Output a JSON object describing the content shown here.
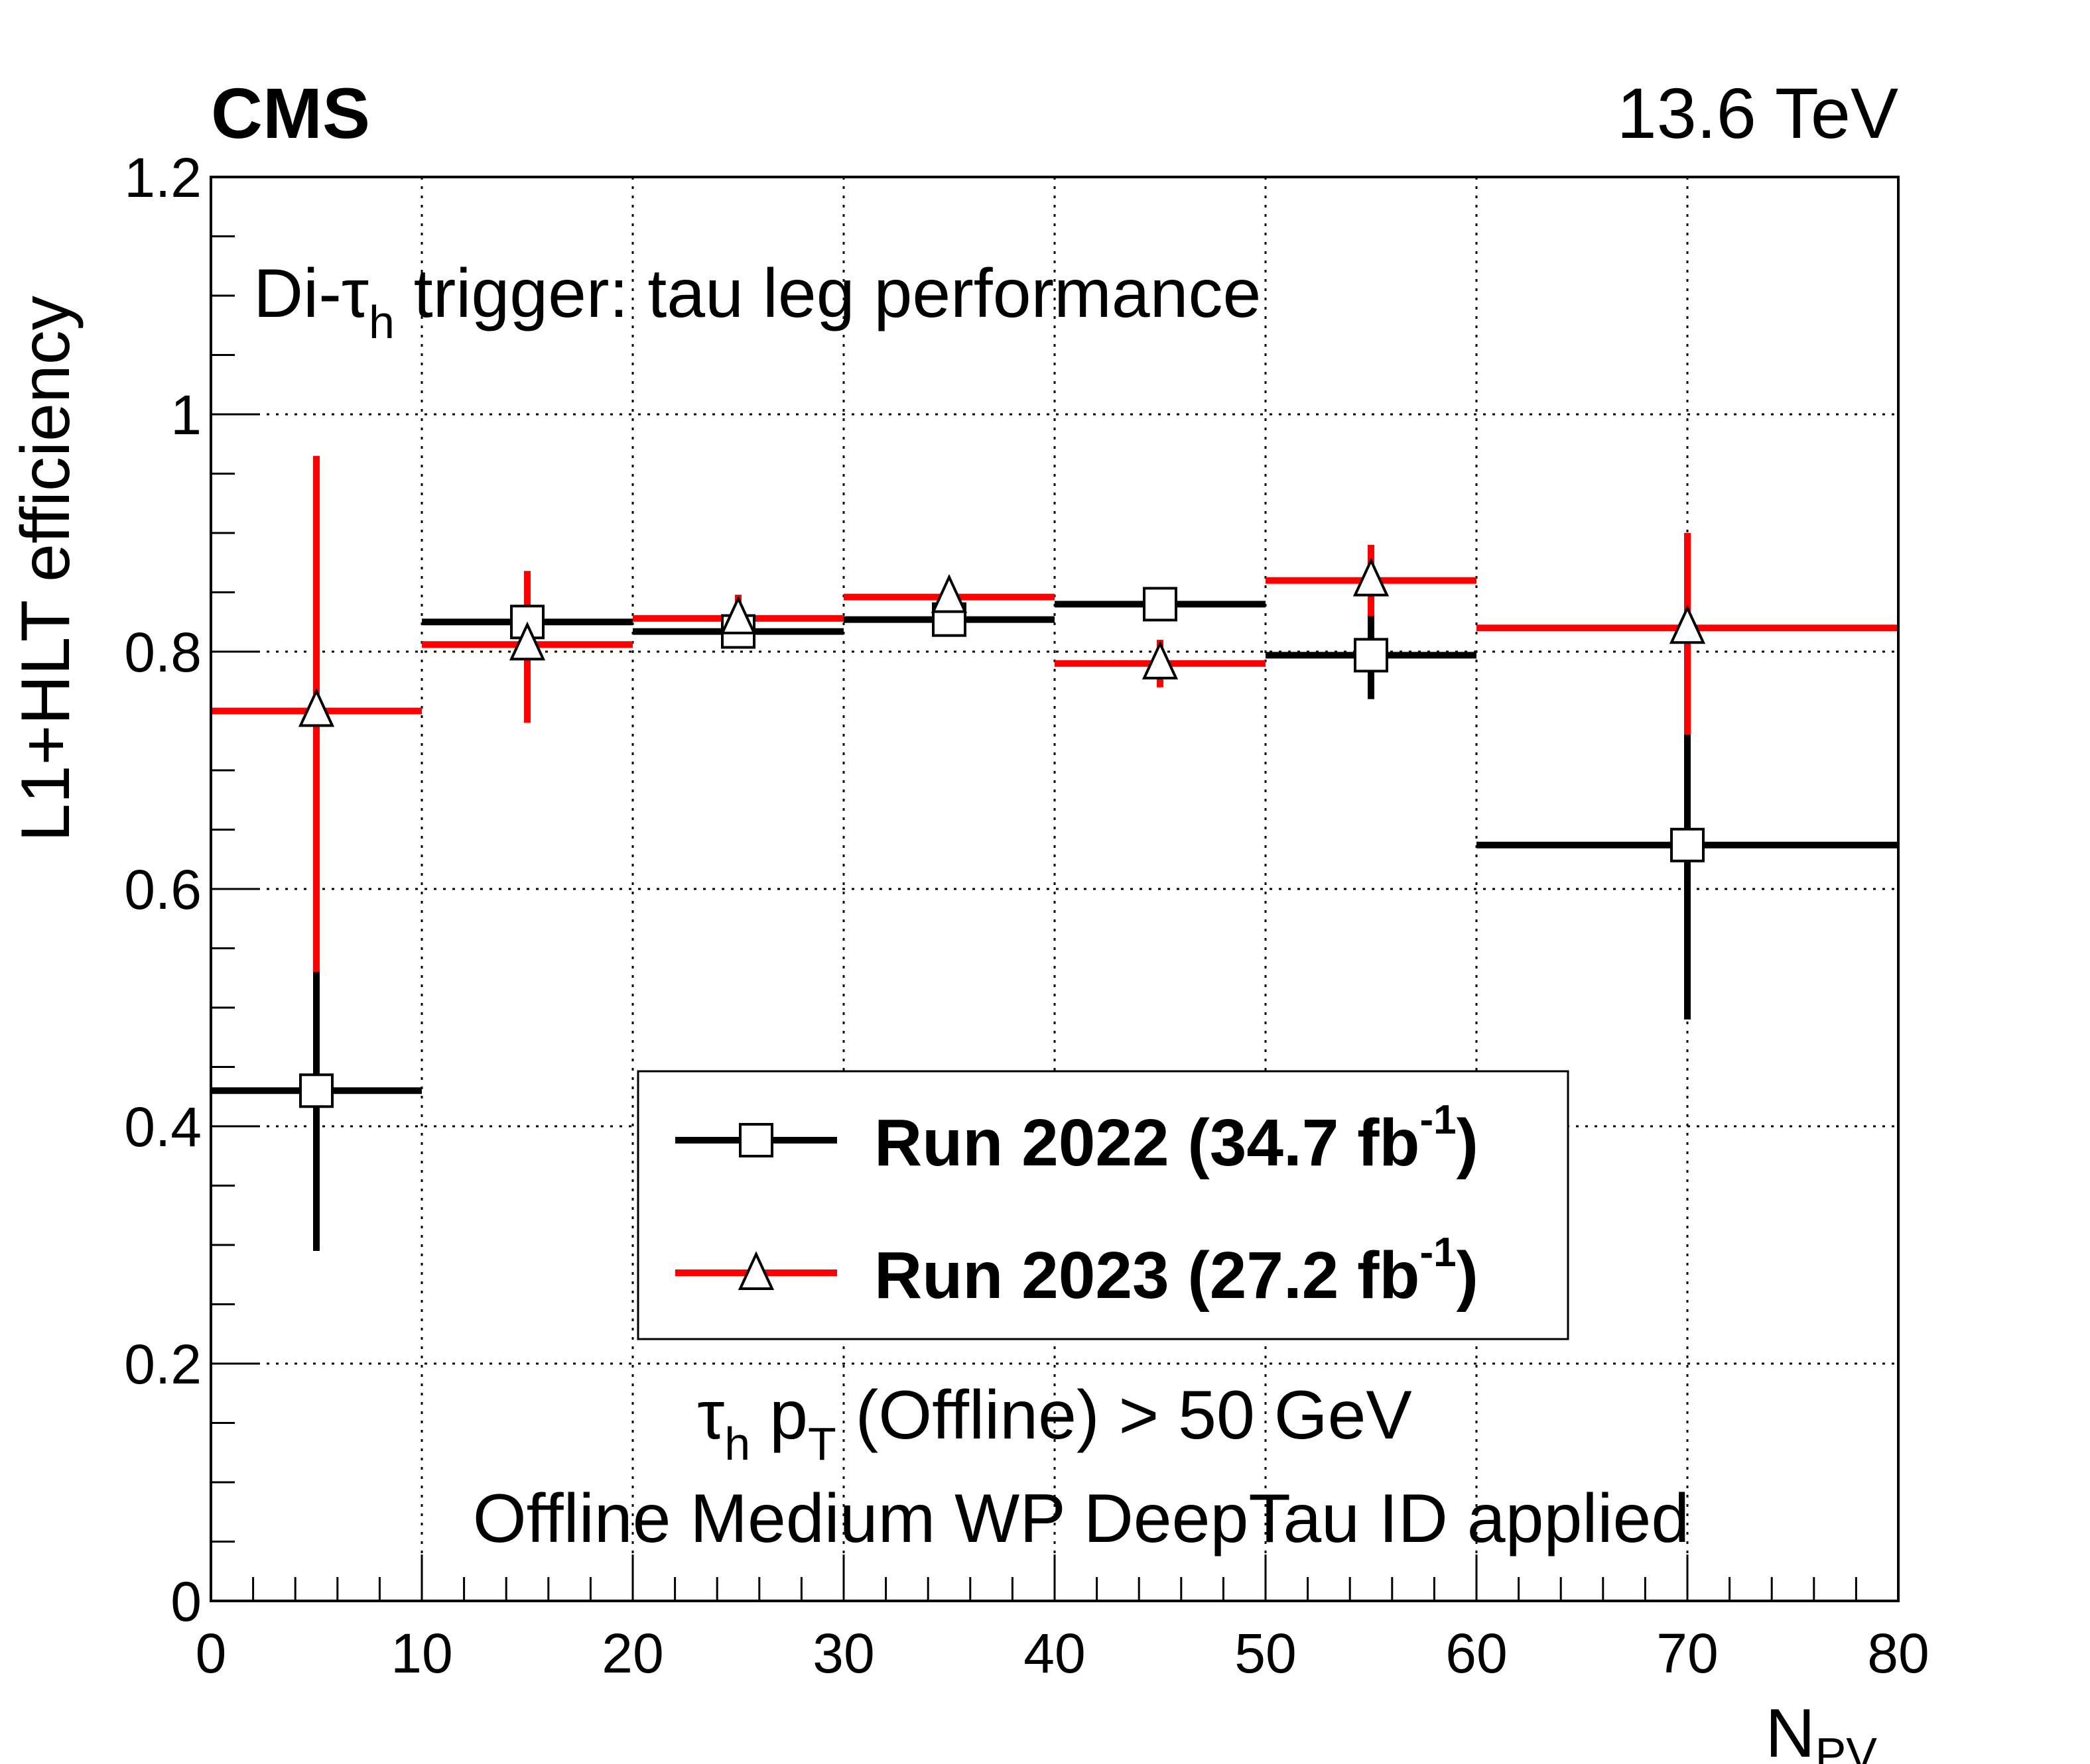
{
  "experiment_label": "CMS",
  "energy_label": "13.6 TeV",
  "annotations": {
    "trigger_prefix": "Di-",
    "trigger_tau": "τ",
    "trigger_sub": "h",
    "trigger_suffix": " trigger: tau leg performance",
    "cut_tau": "τ",
    "cut_tau_sub": "h",
    "cut_p": " p",
    "cut_p_sub": "T",
    "cut_rest": " (Offline) > 50 GeV",
    "id_line": "Offline Medium WP DeepTau ID applied"
  },
  "axes": {
    "ylabel": "L1+HLT efficiency",
    "xlabel_main": "N",
    "xlabel_sub": "PV",
    "x_ticks": [
      "0",
      "10",
      "20",
      "30",
      "40",
      "50",
      "60",
      "70",
      "80"
    ],
    "y_ticks": [
      "0",
      "0.2",
      "0.4",
      "0.6",
      "0.8",
      "1",
      "1.2"
    ]
  },
  "legend": {
    "entries": [
      {
        "main": "Run 2022 (34.7 fb",
        "sup": "-1",
        "close": ")"
      },
      {
        "main": "Run 2023 (27.2 fb",
        "sup": "-1",
        "close": ")"
      }
    ]
  },
  "colors": {
    "run2022": "#000000",
    "run2023": "#ff0000",
    "grid": "#000000"
  },
  "chart_data": {
    "type": "scatter",
    "xlim": [
      0,
      80
    ],
    "ylim": [
      0,
      1.2
    ],
    "grid": true,
    "legend_position": "lower-center",
    "series": [
      {
        "name": "Run 2022 (34.7 fb-1)",
        "marker": "open-square",
        "points": [
          {
            "x": 5,
            "xlo": 0,
            "xhi": 10,
            "y": 0.43,
            "ylo": 0.295,
            "yhi": 0.56
          },
          {
            "x": 15,
            "xlo": 10,
            "xhi": 20,
            "y": 0.825,
            "ylo": 0.8,
            "yhi": 0.85
          },
          {
            "x": 25,
            "xlo": 20,
            "xhi": 30,
            "y": 0.817,
            "ylo": 0.81,
            "yhi": 0.825
          },
          {
            "x": 35,
            "xlo": 30,
            "xhi": 40,
            "y": 0.827,
            "ylo": 0.82,
            "yhi": 0.835
          },
          {
            "x": 45,
            "xlo": 40,
            "xhi": 50,
            "y": 0.84,
            "ylo": 0.83,
            "yhi": 0.85
          },
          {
            "x": 55,
            "xlo": 50,
            "xhi": 60,
            "y": 0.797,
            "ylo": 0.76,
            "yhi": 0.835
          },
          {
            "x": 70,
            "xlo": 60,
            "xhi": 80,
            "y": 0.637,
            "ylo": 0.49,
            "yhi": 0.775
          }
        ]
      },
      {
        "name": "Run 2023 (27.2 fb-1)",
        "marker": "open-triangle",
        "points": [
          {
            "x": 5,
            "xlo": 0,
            "xhi": 10,
            "y": 0.75,
            "ylo": 0.53,
            "yhi": 0.965
          },
          {
            "x": 15,
            "xlo": 10,
            "xhi": 20,
            "y": 0.806,
            "ylo": 0.74,
            "yhi": 0.868
          },
          {
            "x": 25,
            "xlo": 20,
            "xhi": 30,
            "y": 0.828,
            "ylo": 0.81,
            "yhi": 0.848
          },
          {
            "x": 35,
            "xlo": 30,
            "xhi": 40,
            "y": 0.846,
            "ylo": 0.83,
            "yhi": 0.86
          },
          {
            "x": 45,
            "xlo": 40,
            "xhi": 50,
            "y": 0.79,
            "ylo": 0.77,
            "yhi": 0.81
          },
          {
            "x": 55,
            "xlo": 50,
            "xhi": 60,
            "y": 0.86,
            "ylo": 0.83,
            "yhi": 0.89
          },
          {
            "x": 70,
            "xlo": 60,
            "xhi": 80,
            "y": 0.82,
            "ylo": 0.73,
            "yhi": 0.9
          }
        ]
      }
    ]
  }
}
